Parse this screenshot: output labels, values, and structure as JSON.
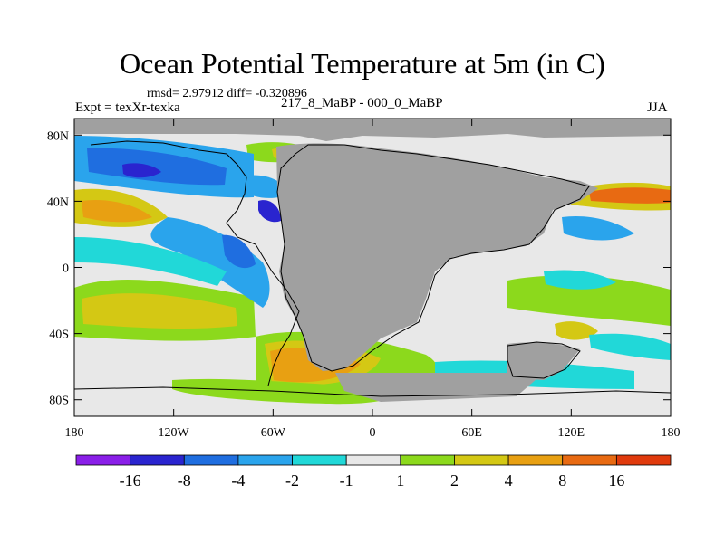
{
  "chart_data": {
    "type": "heatmap",
    "title": "Ocean Potential Temperature at 5m (in C)",
    "stats_line": "rmsd= 2.97912 diff= -0.320896",
    "experiment": "Expt = texXr-texka",
    "comparison": "217_8_MaBP - 000_0_MaBP",
    "season": "JJA",
    "x_axis": {
      "range": [
        -180,
        180
      ],
      "ticks": [
        -180,
        -120,
        -60,
        0,
        60,
        120,
        180
      ],
      "tick_labels": [
        "180",
        "120W",
        "60W",
        "0",
        "60E",
        "120E",
        "180"
      ]
    },
    "y_axis": {
      "range": [
        -90,
        90
      ],
      "ticks": [
        80,
        40,
        0,
        -40,
        -80
      ],
      "tick_labels": [
        "80N",
        "40N",
        "0",
        "40S",
        "80S"
      ]
    },
    "colorbar": {
      "boundary_labels": [
        "-16",
        "-8",
        "-4",
        "-2",
        "-1",
        "1",
        "2",
        "4",
        "8",
        "16"
      ],
      "colors": [
        "#8a1fe8",
        "#2a24cf",
        "#1f6ee0",
        "#2aa4ec",
        "#21d8d8",
        "#e8e8e8",
        "#8cd91c",
        "#d4c814",
        "#e8a012",
        "#e86a12",
        "#e03a0c"
      ]
    },
    "land_color": "#a0a0a0"
  }
}
